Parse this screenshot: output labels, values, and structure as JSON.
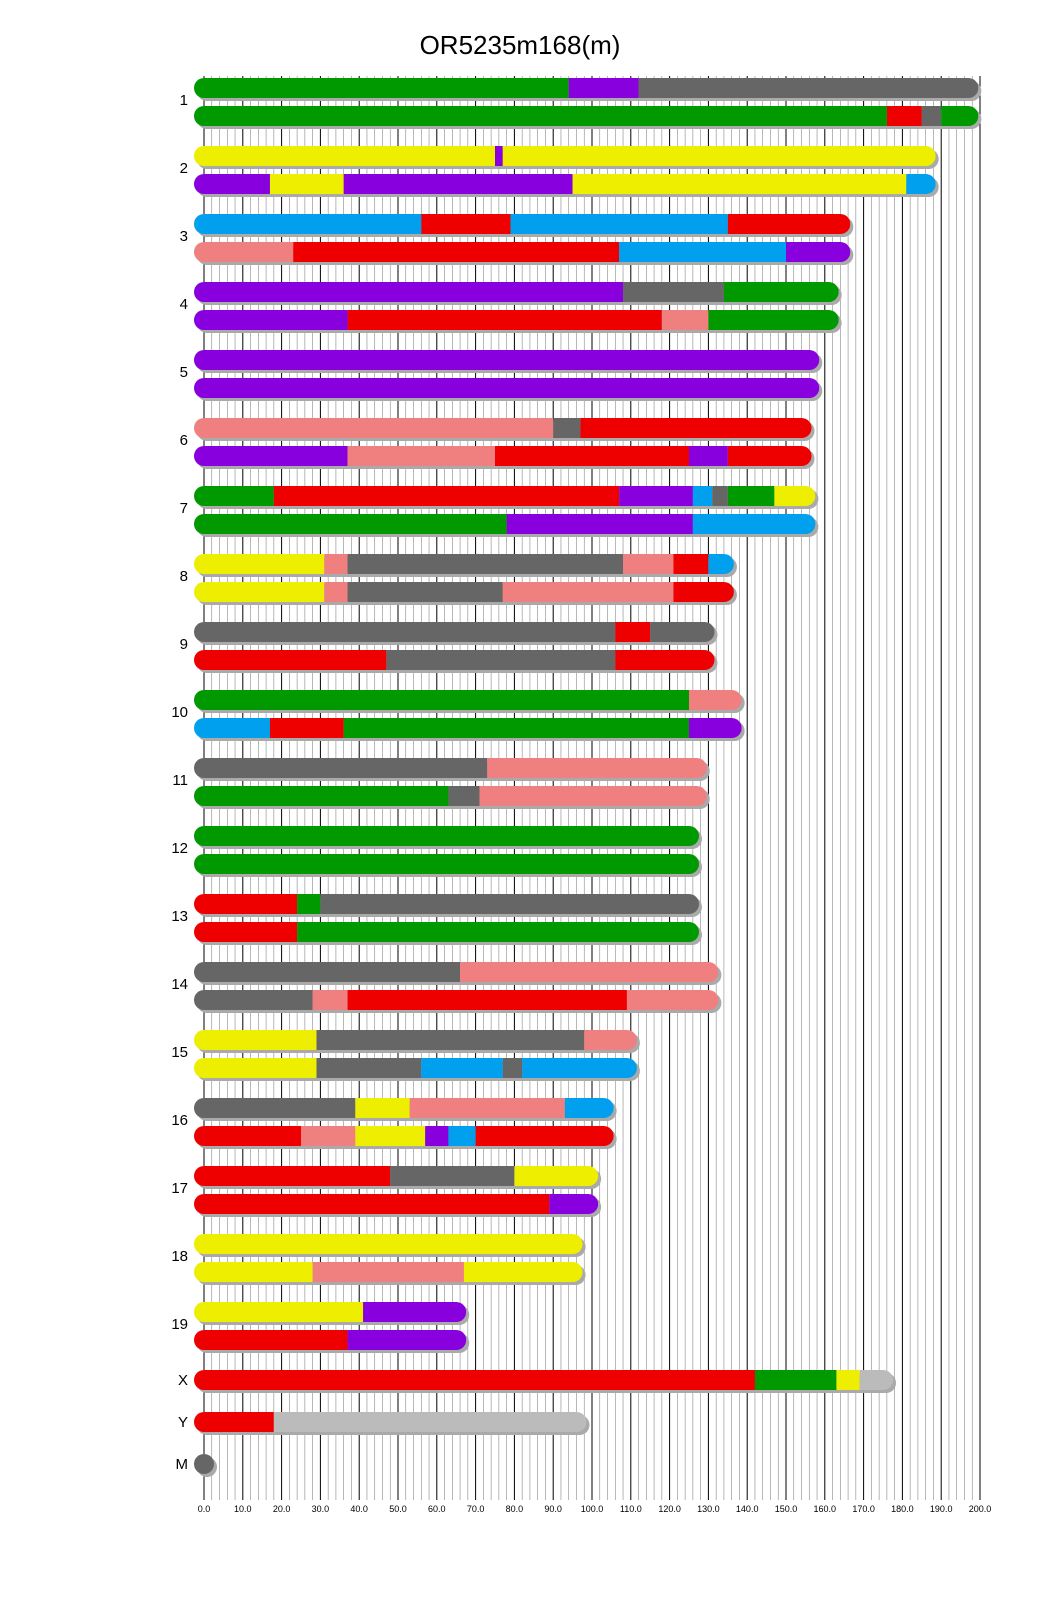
{
  "title": "OR5235m168(m)",
  "colors": {
    "green": "#009900",
    "purple": "#8800dd",
    "darkgray": "#666666",
    "red": "#ee0000",
    "yellow": "#eeee00",
    "blue": "#00a0ee",
    "pink": "#f08080",
    "lightgray": "#bbbbbb",
    "shadow": "#aaaaaa"
  },
  "axis": {
    "min": 0,
    "max": 200,
    "major": 10,
    "minor": 2,
    "tick_labels": [
      "0.0",
      "10.0",
      "20.0",
      "30.0",
      "40.0",
      "50.0",
      "60.0",
      "70.0",
      "80.0",
      "90.0",
      "100.0",
      "110.0",
      "120.0",
      "130.0",
      "140.0",
      "150.0",
      "160.0",
      "170.0",
      "180.0",
      "190.0",
      "200.0"
    ]
  },
  "chromosomes": [
    {
      "name": "1",
      "length": 197,
      "haplotypes": [
        [
          [
            0,
            94,
            "green"
          ],
          [
            94,
            112,
            "purple"
          ],
          [
            112,
            197,
            "darkgray"
          ]
        ],
        [
          [
            0,
            176,
            "green"
          ],
          [
            176,
            185,
            "red"
          ],
          [
            185,
            190,
            "darkgray"
          ],
          [
            190,
            197,
            "green"
          ]
        ]
      ]
    },
    {
      "name": "2",
      "length": 186,
      "haplotypes": [
        [
          [
            0,
            75,
            "yellow"
          ],
          [
            75,
            77,
            "purple"
          ],
          [
            77,
            186,
            "yellow"
          ]
        ],
        [
          [
            0,
            17,
            "purple"
          ],
          [
            17,
            36,
            "yellow"
          ],
          [
            36,
            95,
            "purple"
          ],
          [
            95,
            181,
            "yellow"
          ],
          [
            181,
            186,
            "blue"
          ]
        ]
      ]
    },
    {
      "name": "3",
      "length": 164,
      "haplotypes": [
        [
          [
            0,
            56,
            "blue"
          ],
          [
            56,
            79,
            "red"
          ],
          [
            79,
            135,
            "blue"
          ],
          [
            135,
            164,
            "red"
          ]
        ],
        [
          [
            0,
            23,
            "pink"
          ],
          [
            23,
            107,
            "red"
          ],
          [
            107,
            150,
            "blue"
          ],
          [
            150,
            164,
            "purple"
          ]
        ]
      ]
    },
    {
      "name": "4",
      "length": 161,
      "haplotypes": [
        [
          [
            0,
            108,
            "purple"
          ],
          [
            108,
            134,
            "darkgray"
          ],
          [
            134,
            161,
            "green"
          ]
        ],
        [
          [
            0,
            37,
            "purple"
          ],
          [
            37,
            118,
            "red"
          ],
          [
            118,
            130,
            "pink"
          ],
          [
            130,
            161,
            "green"
          ]
        ]
      ]
    },
    {
      "name": "5",
      "length": 156,
      "haplotypes": [
        [
          [
            0,
            156,
            "purple"
          ]
        ],
        [
          [
            0,
            156,
            "purple"
          ]
        ]
      ]
    },
    {
      "name": "6",
      "length": 154,
      "haplotypes": [
        [
          [
            0,
            90,
            "pink"
          ],
          [
            90,
            97,
            "darkgray"
          ],
          [
            97,
            154,
            "red"
          ]
        ],
        [
          [
            0,
            37,
            "purple"
          ],
          [
            37,
            75,
            "pink"
          ],
          [
            75,
            125,
            "red"
          ],
          [
            125,
            135,
            "purple"
          ],
          [
            135,
            154,
            "red"
          ]
        ]
      ]
    },
    {
      "name": "7",
      "length": 155,
      "haplotypes": [
        [
          [
            0,
            18,
            "green"
          ],
          [
            18,
            107,
            "red"
          ],
          [
            107,
            126,
            "purple"
          ],
          [
            126,
            131,
            "blue"
          ],
          [
            131,
            135,
            "darkgray"
          ],
          [
            135,
            147,
            "green"
          ],
          [
            147,
            155,
            "yellow"
          ]
        ],
        [
          [
            0,
            78,
            "green"
          ],
          [
            78,
            126,
            "purple"
          ],
          [
            126,
            155,
            "blue"
          ]
        ]
      ]
    },
    {
      "name": "8",
      "length": 134,
      "haplotypes": [
        [
          [
            0,
            31,
            "yellow"
          ],
          [
            31,
            37,
            "pink"
          ],
          [
            37,
            108,
            "darkgray"
          ],
          [
            108,
            121,
            "pink"
          ],
          [
            121,
            130,
            "red"
          ],
          [
            130,
            134,
            "blue"
          ]
        ],
        [
          [
            0,
            31,
            "yellow"
          ],
          [
            31,
            37,
            "pink"
          ],
          [
            37,
            77,
            "darkgray"
          ],
          [
            77,
            121,
            "pink"
          ],
          [
            121,
            134,
            "red"
          ]
        ]
      ]
    },
    {
      "name": "9",
      "length": 129,
      "haplotypes": [
        [
          [
            0,
            106,
            "darkgray"
          ],
          [
            106,
            115,
            "red"
          ],
          [
            115,
            129,
            "darkgray"
          ]
        ],
        [
          [
            0,
            47,
            "red"
          ],
          [
            47,
            106,
            "darkgray"
          ],
          [
            106,
            129,
            "red"
          ]
        ]
      ]
    },
    {
      "name": "10",
      "length": 136,
      "haplotypes": [
        [
          [
            0,
            125,
            "green"
          ],
          [
            125,
            136,
            "pink"
          ]
        ],
        [
          [
            0,
            17,
            "blue"
          ],
          [
            17,
            36,
            "red"
          ],
          [
            36,
            125,
            "green"
          ],
          [
            125,
            136,
            "purple"
          ]
        ]
      ]
    },
    {
      "name": "11",
      "length": 127,
      "haplotypes": [
        [
          [
            0,
            73,
            "darkgray"
          ],
          [
            73,
            127,
            "pink"
          ]
        ],
        [
          [
            0,
            63,
            "green"
          ],
          [
            63,
            71,
            "darkgray"
          ],
          [
            71,
            127,
            "pink"
          ]
        ]
      ]
    },
    {
      "name": "12",
      "length": 125,
      "haplotypes": [
        [
          [
            0,
            125,
            "green"
          ]
        ],
        [
          [
            0,
            125,
            "green"
          ]
        ]
      ]
    },
    {
      "name": "13",
      "length": 125,
      "haplotypes": [
        [
          [
            0,
            24,
            "red"
          ],
          [
            24,
            30,
            "green"
          ],
          [
            30,
            125,
            "darkgray"
          ]
        ],
        [
          [
            0,
            24,
            "red"
          ],
          [
            24,
            125,
            "green"
          ]
        ]
      ]
    },
    {
      "name": "14",
      "length": 130,
      "haplotypes": [
        [
          [
            0,
            66,
            "darkgray"
          ],
          [
            66,
            130,
            "pink"
          ]
        ],
        [
          [
            0,
            28,
            "darkgray"
          ],
          [
            28,
            37,
            "pink"
          ],
          [
            37,
            109,
            "red"
          ],
          [
            109,
            130,
            "pink"
          ]
        ]
      ]
    },
    {
      "name": "15",
      "length": 109,
      "haplotypes": [
        [
          [
            0,
            29,
            "yellow"
          ],
          [
            29,
            98,
            "darkgray"
          ],
          [
            98,
            109,
            "pink"
          ]
        ],
        [
          [
            0,
            29,
            "yellow"
          ],
          [
            29,
            56,
            "darkgray"
          ],
          [
            56,
            77,
            "blue"
          ],
          [
            77,
            82,
            "darkgray"
          ],
          [
            82,
            109,
            "blue"
          ]
        ]
      ]
    },
    {
      "name": "16",
      "length": 103,
      "haplotypes": [
        [
          [
            0,
            39,
            "darkgray"
          ],
          [
            39,
            53,
            "yellow"
          ],
          [
            53,
            93,
            "pink"
          ],
          [
            93,
            103,
            "blue"
          ]
        ],
        [
          [
            0,
            25,
            "red"
          ],
          [
            25,
            39,
            "pink"
          ],
          [
            39,
            57,
            "yellow"
          ],
          [
            57,
            63,
            "purple"
          ],
          [
            63,
            70,
            "blue"
          ],
          [
            70,
            103,
            "red"
          ]
        ]
      ]
    },
    {
      "name": "17",
      "length": 99,
      "haplotypes": [
        [
          [
            0,
            48,
            "red"
          ],
          [
            48,
            80,
            "darkgray"
          ],
          [
            80,
            99,
            "yellow"
          ]
        ],
        [
          [
            0,
            89,
            "red"
          ],
          [
            89,
            99,
            "purple"
          ]
        ]
      ]
    },
    {
      "name": "18",
      "length": 95,
      "haplotypes": [
        [
          [
            0,
            95,
            "yellow"
          ]
        ],
        [
          [
            0,
            28,
            "yellow"
          ],
          [
            28,
            67,
            "pink"
          ],
          [
            67,
            95,
            "yellow"
          ]
        ]
      ]
    },
    {
      "name": "19",
      "length": 65,
      "haplotypes": [
        [
          [
            0,
            41,
            "yellow"
          ],
          [
            41,
            65,
            "purple"
          ]
        ],
        [
          [
            0,
            37,
            "red"
          ],
          [
            37,
            65,
            "purple"
          ]
        ]
      ]
    },
    {
      "name": "X",
      "length": 175,
      "haplotypes": [
        [
          [
            0,
            142,
            "red"
          ],
          [
            142,
            163,
            "green"
          ],
          [
            163,
            169,
            "yellow"
          ],
          [
            169,
            175,
            "lightgray"
          ]
        ]
      ]
    },
    {
      "name": "Y",
      "length": 96,
      "haplotypes": [
        [
          [
            0,
            18,
            "red"
          ],
          [
            18,
            96,
            "lightgray"
          ]
        ]
      ]
    },
    {
      "name": "M",
      "length": 0,
      "haplotypes": [
        [
          [
            0,
            0,
            "darkgray"
          ]
        ]
      ]
    }
  ]
}
